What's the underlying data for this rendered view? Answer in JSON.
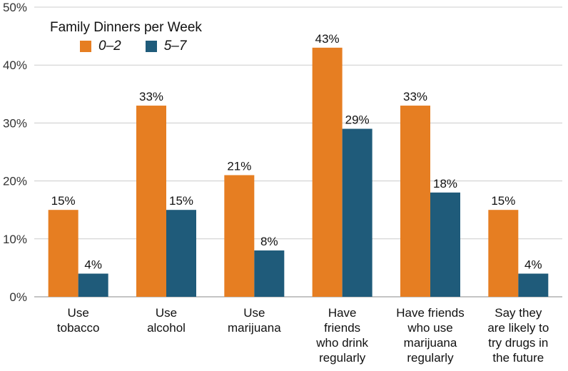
{
  "chart_data": {
    "type": "bar",
    "legend_title": "Family Dinners per Week",
    "categories": [
      [
        "Use",
        "tobacco"
      ],
      [
        "Use",
        "alcohol"
      ],
      [
        "Use",
        "marijuana"
      ],
      [
        "Have",
        "friends",
        "who drink",
        "regularly"
      ],
      [
        "Have friends",
        "who use",
        "marijuana",
        "regularly"
      ],
      [
        "Say they",
        "are likely to",
        "try drugs in",
        "the future"
      ]
    ],
    "series": [
      {
        "name": "0–2",
        "color": "#e67e22",
        "values": [
          15,
          33,
          21,
          43,
          33,
          15
        ]
      },
      {
        "name": "5–7",
        "color": "#1f5b7a",
        "values": [
          4,
          15,
          8,
          29,
          18,
          4
        ]
      }
    ],
    "ylim": [
      0,
      50
    ],
    "yticks": [
      0,
      10,
      20,
      30,
      40,
      50
    ],
    "value_suffix": "%",
    "grid": true,
    "legend_position": "top-left"
  }
}
